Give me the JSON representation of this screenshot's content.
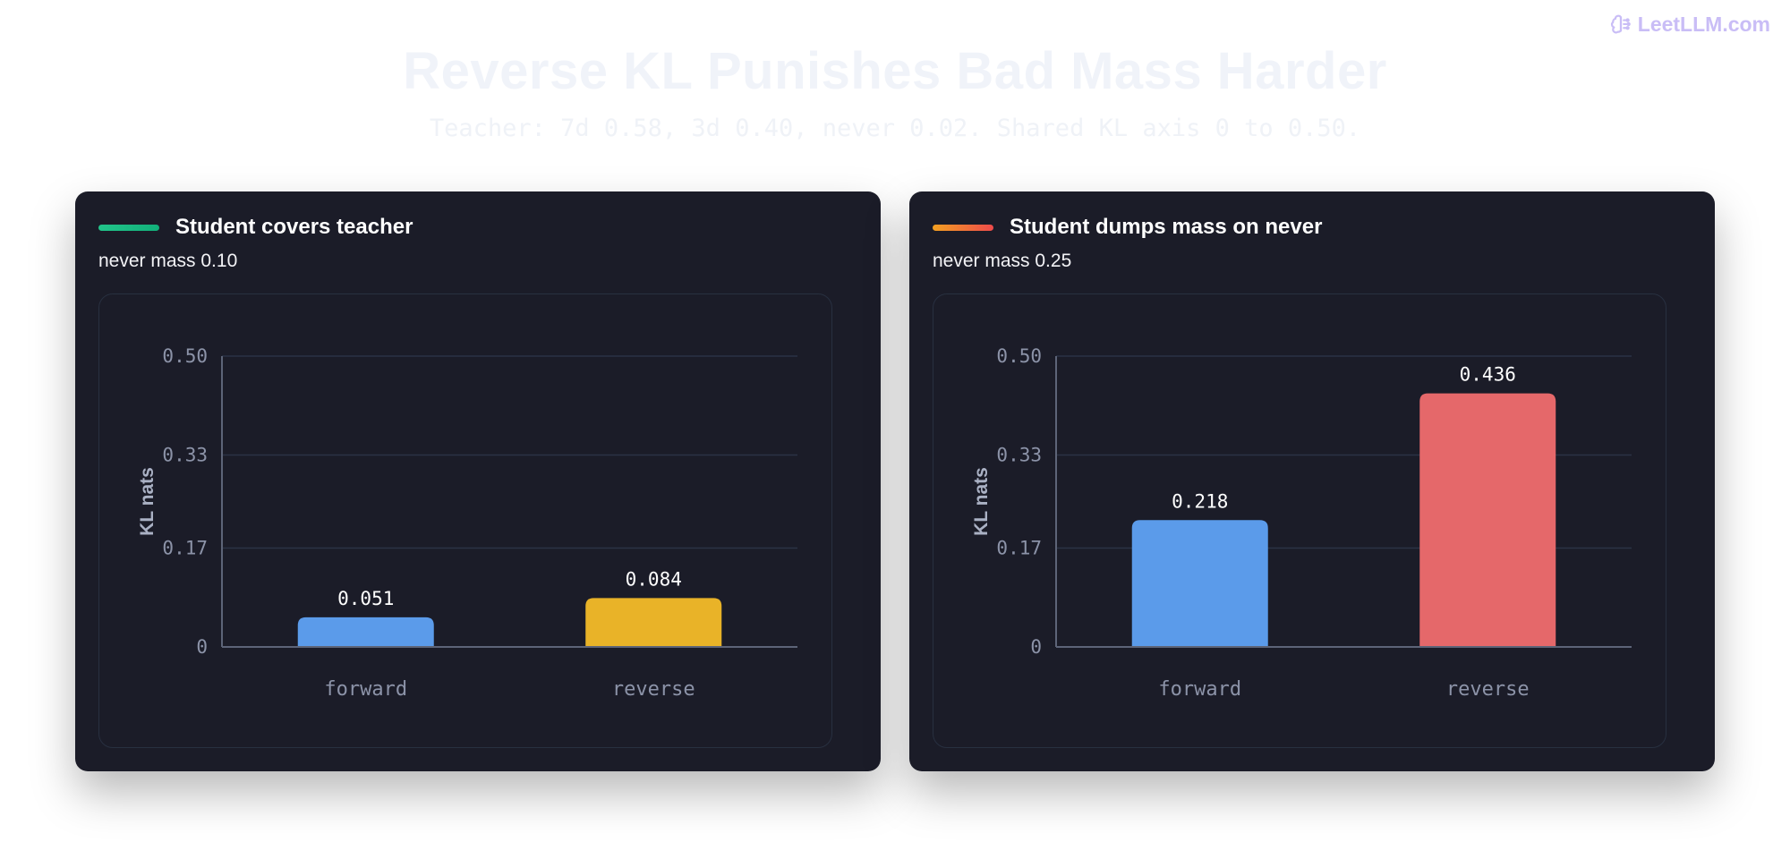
{
  "brand": {
    "name": "LeetLLM.com",
    "icon": "brain-icon",
    "color": "#c9bdf6"
  },
  "header": {
    "title": "Reverse KL Punishes Bad Mass Harder",
    "subtitle": "Teacher: 7d 0.58, 3d 0.40, never 0.02. Shared KL axis 0 to 0.50."
  },
  "chart_data": [
    {
      "type": "bar",
      "title": "Student covers teacher",
      "subtitle": "never mass 0.10",
      "accent": [
        "#22c48a",
        "#12b07a"
      ],
      "categories": [
        "forward",
        "reverse"
      ],
      "values": [
        0.051,
        0.084
      ],
      "value_labels": [
        "0.051",
        "0.084"
      ],
      "colors": [
        "#5b9bea",
        "#e9b328"
      ],
      "ylabel": "KL nats",
      "ylim": [
        0,
        0.5
      ],
      "yticks": [
        0,
        0.17,
        0.33,
        0.5
      ],
      "ytick_labels": [
        "0",
        "0.17",
        "0.33",
        "0.50"
      ],
      "grid": true
    },
    {
      "type": "bar",
      "title": "Student dumps mass on never",
      "subtitle": "never mass 0.25",
      "accent": [
        "#f3a021",
        "#ee4b4b"
      ],
      "categories": [
        "forward",
        "reverse"
      ],
      "values": [
        0.218,
        0.436
      ],
      "value_labels": [
        "0.218",
        "0.436"
      ],
      "colors": [
        "#5b9bea",
        "#e5686a"
      ],
      "ylabel": "KL nats",
      "ylim": [
        0,
        0.5
      ],
      "yticks": [
        0,
        0.17,
        0.33,
        0.5
      ],
      "ytick_labels": [
        "0",
        "0.17",
        "0.33",
        "0.50"
      ],
      "grid": true
    }
  ]
}
